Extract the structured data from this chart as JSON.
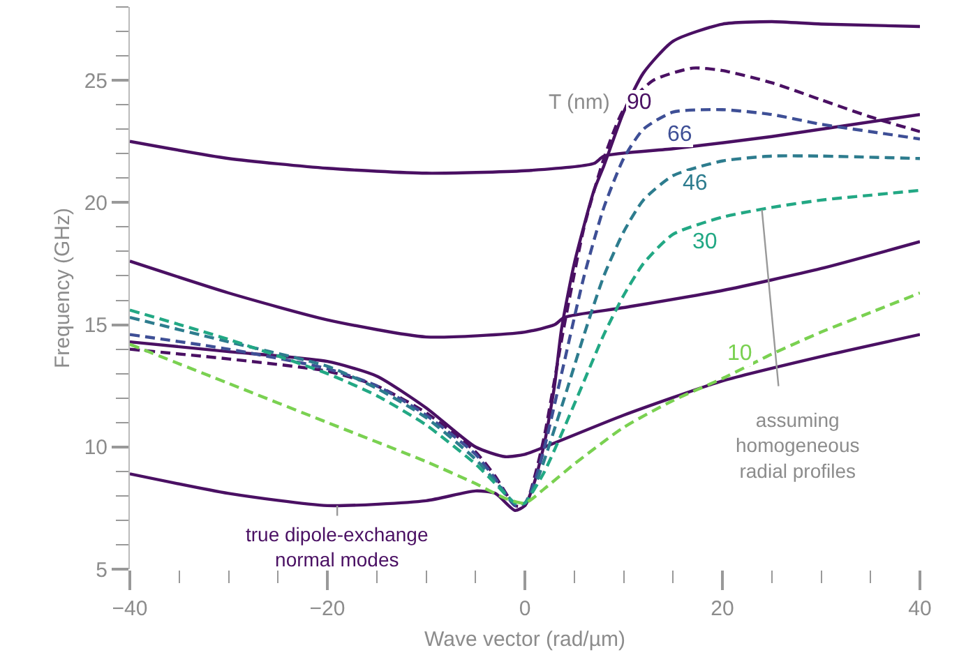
{
  "chart_data": {
    "type": "line",
    "xlabel": "Wave vector (rad/µm)",
    "ylabel": "Frequency (GHz)",
    "xlim": [
      -40,
      40
    ],
    "ylim": [
      5,
      28
    ],
    "xticks": [
      -40,
      {
        "value": -35,
        "label": null
      },
      {
        "value": -30,
        "label": null
      },
      {
        "value": -25,
        "label": null
      },
      -20,
      {
        "value": -15,
        "label": null
      },
      {
        "value": -10,
        "label": null
      },
      {
        "value": -5,
        "label": null
      },
      0,
      {
        "value": 5,
        "label": null
      },
      {
        "value": 10,
        "label": null
      },
      {
        "value": 15,
        "label": null
      },
      20,
      {
        "value": 25,
        "label": null
      },
      {
        "value": 30,
        "label": null
      },
      {
        "value": 35,
        "label": null
      },
      40
    ],
    "yticks": [
      5,
      {
        "value": 6,
        "label": null
      },
      {
        "value": 7,
        "label": null
      },
      {
        "value": 8,
        "label": null
      },
      {
        "value": 9,
        "label": null
      },
      10,
      {
        "value": 11,
        "label": null
      },
      {
        "value": 12,
        "label": null
      },
      {
        "value": 13,
        "label": null
      },
      {
        "value": 14,
        "label": null
      },
      15,
      {
        "value": 16,
        "label": null
      },
      {
        "value": 17,
        "label": null
      },
      {
        "value": 18,
        "label": null
      },
      {
        "value": 19,
        "label": null
      },
      20,
      {
        "value": 21,
        "label": null
      },
      {
        "value": 22,
        "label": null
      },
      {
        "value": 23,
        "label": null
      },
      {
        "value": 24,
        "label": null
      },
      25,
      {
        "value": 26,
        "label": null
      },
      {
        "value": 27,
        "label": null
      },
      {
        "value": 28,
        "label": null
      }
    ],
    "legend": false,
    "marker": "none",
    "series": [
      {
        "color": "#4a1063",
        "line_style": "solid",
        "x": [
          -40,
          -30,
          -20,
          -15,
          -10,
          -5,
          -2,
          0,
          2,
          10,
          20,
          30,
          40
        ],
        "values": [
          14.3,
          13.9,
          13.5,
          12.9,
          11.6,
          10.0,
          9.6,
          9.7,
          10.0,
          11.3,
          12.7,
          13.7,
          14.6
        ]
      },
      {
        "color": "#4a1063",
        "line_style": "solid",
        "x": [
          -40,
          -30,
          -20,
          -10,
          -5,
          -3,
          -1,
          0,
          1,
          2,
          3,
          3.7,
          5,
          7,
          8,
          10,
          12,
          15,
          20,
          25,
          30,
          40
        ],
        "values": [
          8.9,
          8.1,
          7.6,
          7.8,
          8.2,
          8.1,
          7.4,
          7.6,
          8.6,
          10.2,
          12.5,
          14.8,
          17.5,
          20.5,
          21.5,
          23.7,
          25.3,
          26.6,
          27.3,
          27.4,
          27.3,
          27.2
        ]
      },
      {
        "color": "#4a1063",
        "line_style": "solid",
        "x": [
          -40,
          -30,
          -20,
          -10,
          0,
          3,
          4,
          10,
          20,
          30,
          40
        ],
        "values": [
          17.6,
          16.3,
          15.2,
          14.5,
          14.7,
          15.0,
          15.3,
          15.7,
          16.4,
          17.3,
          18.4
        ]
      },
      {
        "color": "#4a1063",
        "line_style": "solid",
        "x": [
          -40,
          -30,
          -20,
          -10,
          0,
          7,
          8,
          15,
          25,
          40
        ],
        "values": [
          22.5,
          21.8,
          21.4,
          21.2,
          21.3,
          21.6,
          21.9,
          22.2,
          22.7,
          23.6
        ]
      },
      {
        "name": "90",
        "color": "#4a1063",
        "line_style": "dashed",
        "x": [
          -40,
          -30,
          -20,
          -15,
          -10,
          -5,
          -3,
          -1,
          0,
          1,
          2,
          4,
          6,
          8,
          10,
          13,
          17,
          20,
          25,
          30,
          35,
          40
        ],
        "values": [
          14.0,
          13.6,
          13.1,
          12.5,
          11.4,
          9.8,
          8.8,
          7.6,
          7.6,
          8.8,
          10.5,
          15.0,
          19.0,
          21.8,
          23.8,
          25.0,
          25.5,
          25.4,
          24.9,
          24.2,
          23.5,
          22.9
        ]
      },
      {
        "name": "66",
        "color": "#3e4f96",
        "line_style": "dashed",
        "x": [
          -40,
          -30,
          -20,
          -15,
          -10,
          -5,
          -3,
          -1,
          0,
          1,
          2,
          4,
          6,
          8,
          10,
          12,
          15,
          20,
          25,
          30,
          35,
          40
        ],
        "values": [
          14.6,
          14.0,
          13.2,
          12.5,
          11.3,
          9.7,
          8.7,
          7.6,
          7.7,
          8.6,
          10.0,
          13.5,
          17.0,
          19.8,
          21.8,
          23.0,
          23.7,
          23.8,
          23.6,
          23.2,
          22.9,
          22.6
        ]
      },
      {
        "name": "46",
        "color": "#2d7c8e",
        "line_style": "dashed",
        "x": [
          -40,
          -30,
          -20,
          -15,
          -10,
          -5,
          -3,
          -1,
          0,
          1,
          2,
          4,
          6,
          8,
          10,
          12,
          15,
          20,
          25,
          30,
          40
        ],
        "values": [
          15.3,
          14.3,
          13.3,
          12.4,
          11.2,
          9.5,
          8.6,
          7.7,
          7.7,
          8.4,
          9.5,
          12.0,
          14.6,
          17.0,
          18.8,
          20.1,
          21.1,
          21.7,
          21.9,
          21.9,
          21.8
        ]
      },
      {
        "name": "30",
        "color": "#22a884",
        "line_style": "dashed",
        "x": [
          -40,
          -30,
          -20,
          -15,
          -10,
          -5,
          -3,
          -1,
          0,
          1,
          2,
          4,
          6,
          8,
          10,
          12,
          15,
          20,
          25,
          30,
          35,
          40
        ],
        "values": [
          15.6,
          14.4,
          13.0,
          12.1,
          10.9,
          9.3,
          8.5,
          7.7,
          7.7,
          8.3,
          9.0,
          10.8,
          12.7,
          14.6,
          16.2,
          17.5,
          18.7,
          19.4,
          19.8,
          20.1,
          20.3,
          20.5
        ]
      },
      {
        "name": "10",
        "color": "#7ad151",
        "line_style": "dashed",
        "x": [
          -40,
          -30,
          -20,
          -10,
          -5,
          -2,
          0,
          2,
          5,
          10,
          15,
          20,
          25,
          30,
          35,
          40
        ],
        "values": [
          14.2,
          12.6,
          11.0,
          9.4,
          8.5,
          7.9,
          7.7,
          8.3,
          9.3,
          10.8,
          11.9,
          12.8,
          13.8,
          14.7,
          15.5,
          16.3
        ]
      }
    ],
    "annotations": [
      "T (nm)",
      {
        "text": "assuming\nhomogeneous\nradial profiles",
        "x": 24,
        "y": 19.7
      },
      {
        "text": "true dipole-exchange\nnormal modes",
        "x": -19,
        "y": 7.6
      }
    ]
  }
}
